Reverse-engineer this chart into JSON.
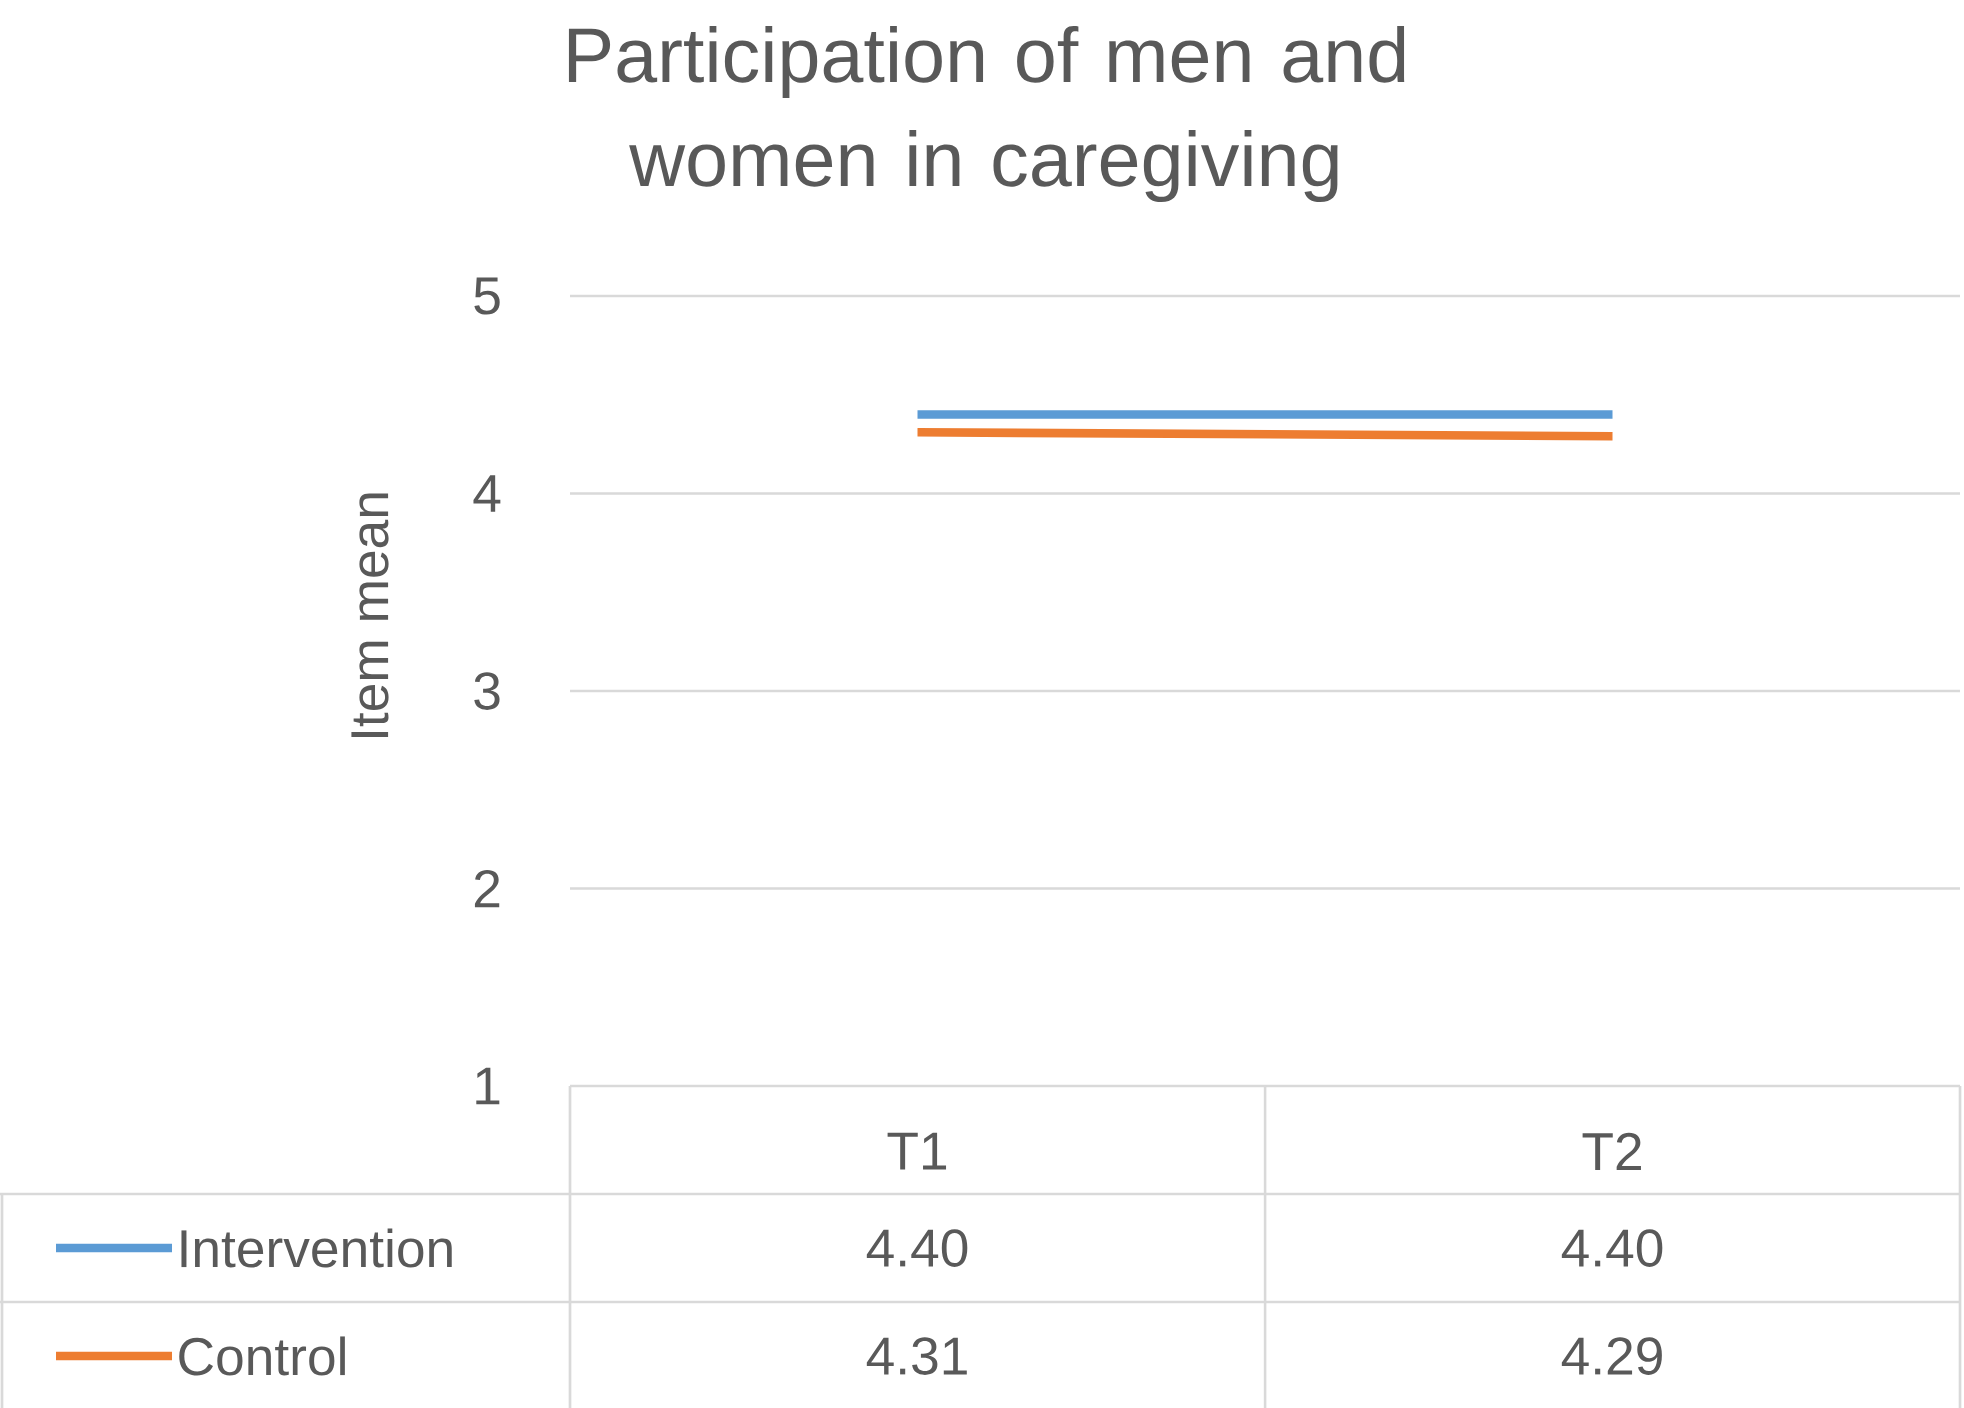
{
  "chart_data": {
    "type": "line",
    "title": "Participation of men and women in caregiving",
    "ylabel": "Item mean",
    "categories": [
      "T1",
      "T2"
    ],
    "series": [
      {
        "name": "Intervention",
        "color": "#5b9bd5",
        "values": [
          4.4,
          4.4
        ],
        "value_labels": [
          "4.40",
          "4.40"
        ]
      },
      {
        "name": "Control",
        "color": "#ed7d31",
        "values": [
          4.31,
          4.29
        ],
        "value_labels": [
          "4.31",
          "4.29"
        ]
      }
    ],
    "ylim": [
      1,
      5
    ],
    "yticks": [
      1,
      2,
      3,
      4,
      5
    ],
    "grid": "y",
    "legend": "bottom",
    "marker": "none",
    "line_style": "solid"
  }
}
